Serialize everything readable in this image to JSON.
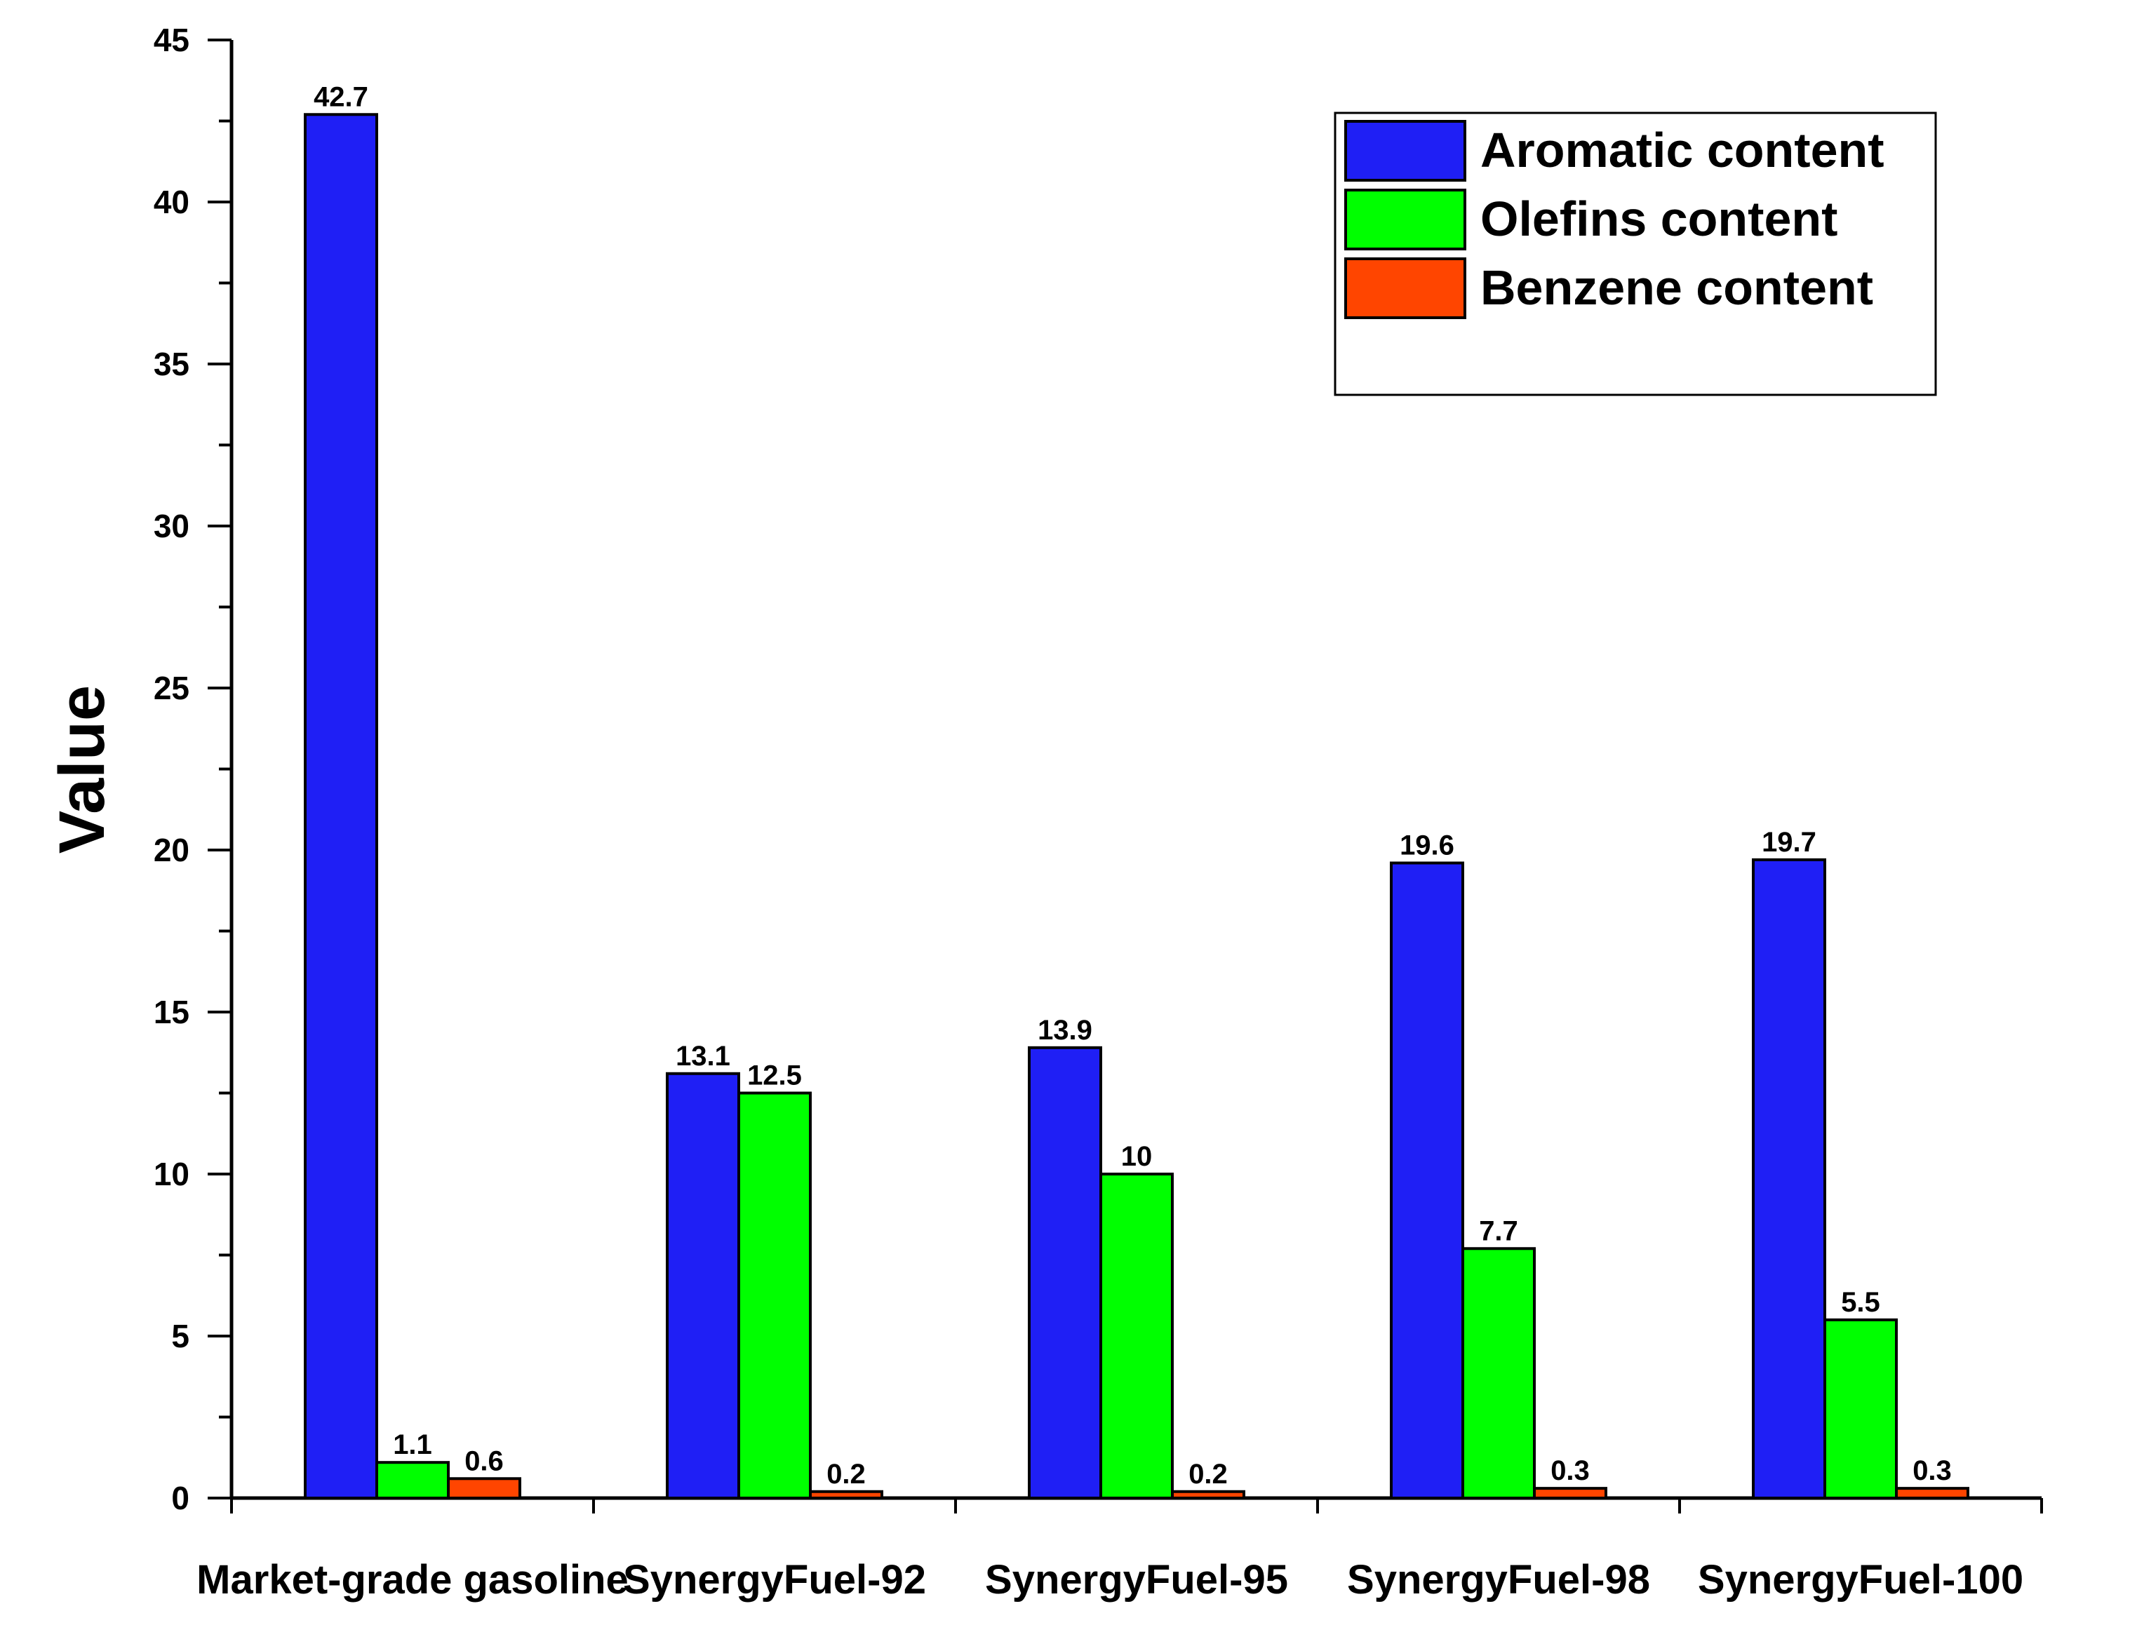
{
  "chart_data": {
    "type": "bar",
    "title": "",
    "xlabel": "",
    "ylabel": "Value",
    "ylim": [
      0,
      45
    ],
    "yticks": [
      0,
      5,
      10,
      15,
      20,
      25,
      30,
      35,
      40,
      45
    ],
    "grid": false,
    "legend_position": "top-right",
    "categories": [
      "Market-grade gasoline",
      "SynergyFuel-92",
      "SynergyFuel-95",
      "SynergyFuel-98",
      "SynergyFuel-100"
    ],
    "series": [
      {
        "name": "Aromatic content",
        "color": "#1f1ff5",
        "values": [
          42.7,
          13.1,
          13.9,
          19.6,
          19.7
        ],
        "labels": [
          "42.7",
          "13.1",
          "13.9",
          "19.6",
          "19.7"
        ]
      },
      {
        "name": "Olefins content",
        "color": "#00ff00",
        "values": [
          1.1,
          12.5,
          10,
          7.7,
          5.5
        ],
        "labels": [
          "1.1",
          "12.5",
          "10",
          "7.7",
          "5.5"
        ]
      },
      {
        "name": "Benzene content",
        "color": "#ff4500",
        "values": [
          0.6,
          0.2,
          0.2,
          0.3,
          0.3
        ],
        "labels": [
          "0.6",
          "0.2",
          "0.2",
          "0.3",
          "0.3"
        ]
      }
    ]
  }
}
